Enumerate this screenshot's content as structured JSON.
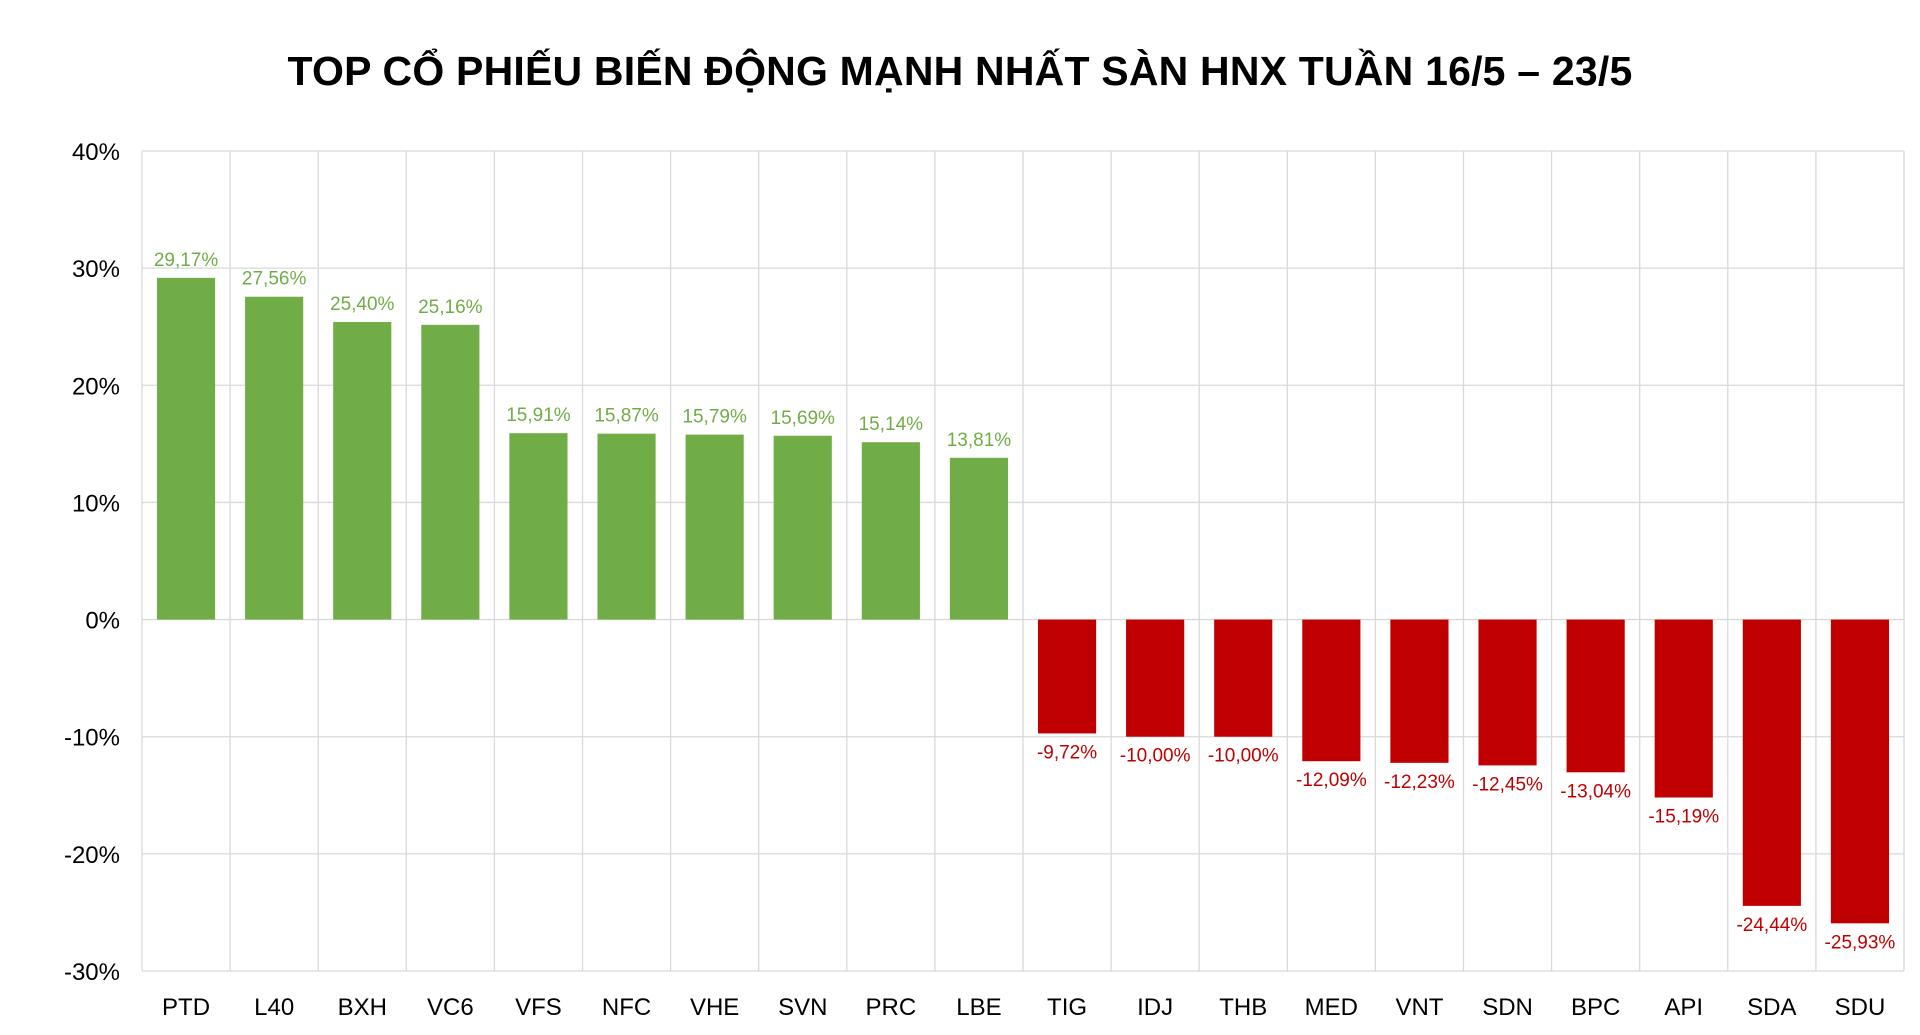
{
  "chart_data": {
    "type": "bar",
    "title": "TOP CỔ PHIẾU BIẾN ĐỘNG MẠNH NHẤT SÀN HNX TUẦN 16/5 – 23/5",
    "xlabel": "",
    "ylabel": "",
    "ylim": [
      -30,
      40
    ],
    "yticks": [
      40,
      30,
      20,
      10,
      0,
      -10,
      -20,
      -30
    ],
    "ytick_labels": [
      "40%",
      "30%",
      "20%",
      "10%",
      "0%",
      "-10%",
      "-20%",
      "-30%"
    ],
    "grid": true,
    "legend": "none",
    "categories": [
      "PTD",
      "L40",
      "BXH",
      "VC6",
      "VFS",
      "NFC",
      "VHE",
      "SVN",
      "PRC",
      "LBE",
      "TIG",
      "IDJ",
      "THB",
      "MED",
      "VNT",
      "SDN",
      "BPC",
      "API",
      "SDA",
      "SDU"
    ],
    "values": [
      29.17,
      27.56,
      25.4,
      25.16,
      15.91,
      15.87,
      15.79,
      15.69,
      15.14,
      13.81,
      -9.72,
      -10.0,
      -10.0,
      -12.09,
      -12.23,
      -12.45,
      -13.04,
      -15.19,
      -24.44,
      -25.93
    ],
    "data_labels": [
      "29,17%",
      "27,56%",
      "25,40%",
      "25,16%",
      "15,91%",
      "15,87%",
      "15,79%",
      "15,69%",
      "15,14%",
      "13,81%",
      "-9,72%",
      "-10,00%",
      "-10,00%",
      "-12,09%",
      "-12,23%",
      "-12,45%",
      "-13,04%",
      "-15,19%",
      "-24,44%",
      "-25,93%"
    ],
    "colors": {
      "positive": "#70AD47",
      "negative": "#C00000",
      "grid": "#D9D9D9"
    }
  }
}
